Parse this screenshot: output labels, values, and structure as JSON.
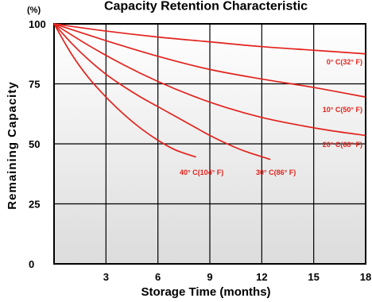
{
  "colors": {
    "curve": "#e3231d",
    "grid": "#000000",
    "plot_bg_top": "#ffffff",
    "plot_bg_bottom": "#dcdcdc"
  },
  "chart_data": {
    "type": "line",
    "title": "Capacity Retention Characteristic",
    "xlabel": "Storage Time (months)",
    "ylabel": "Remaining Capacity",
    "yunit": "(%)",
    "xlim": [
      0,
      18
    ],
    "ylim": [
      0,
      100
    ],
    "xticks": [
      3,
      6,
      9,
      12,
      15,
      18
    ],
    "xtick_labels": [
      "3",
      "6",
      "9",
      "12",
      "15",
      "18"
    ],
    "yticks": [
      0,
      25,
      50,
      75,
      100
    ],
    "ytick_labels": [
      "0",
      "25",
      "50",
      "75",
      "100"
    ],
    "grid": true,
    "series": [
      {
        "name": "0° C(32° F)",
        "x": [
          0,
          3,
          6,
          9,
          12,
          15,
          18
        ],
        "y": [
          100,
          97,
          94.5,
          92.5,
          90.5,
          89,
          87.5
        ]
      },
      {
        "name": "10° C(50° F)",
        "x": [
          0,
          3,
          6,
          9,
          12,
          15,
          18
        ],
        "y": [
          100,
          93,
          86.5,
          81,
          77,
          73.5,
          69.5
        ]
      },
      {
        "name": "20° C(68° F)",
        "x": [
          0,
          2,
          4,
          6,
          8,
          10,
          12,
          14,
          16,
          18
        ],
        "y": [
          100,
          91,
          83,
          76,
          70,
          65,
          61,
          58,
          55.5,
          53.5
        ]
      },
      {
        "name": "30° C(86° F)",
        "x": [
          0,
          1,
          2,
          3,
          4,
          5,
          6,
          7,
          8,
          9,
          10,
          11,
          12.5
        ],
        "y": [
          100,
          92,
          85,
          79,
          74,
          69.5,
          65.5,
          61.5,
          57.5,
          53.5,
          50,
          47,
          43.5
        ]
      },
      {
        "name": "40° C(104° F)",
        "x": [
          0,
          1,
          2,
          3,
          4,
          5,
          6,
          7,
          8.2
        ],
        "y": [
          100,
          87.5,
          77.5,
          69.5,
          62.5,
          56.5,
          51.5,
          47.5,
          44.5
        ]
      }
    ]
  }
}
